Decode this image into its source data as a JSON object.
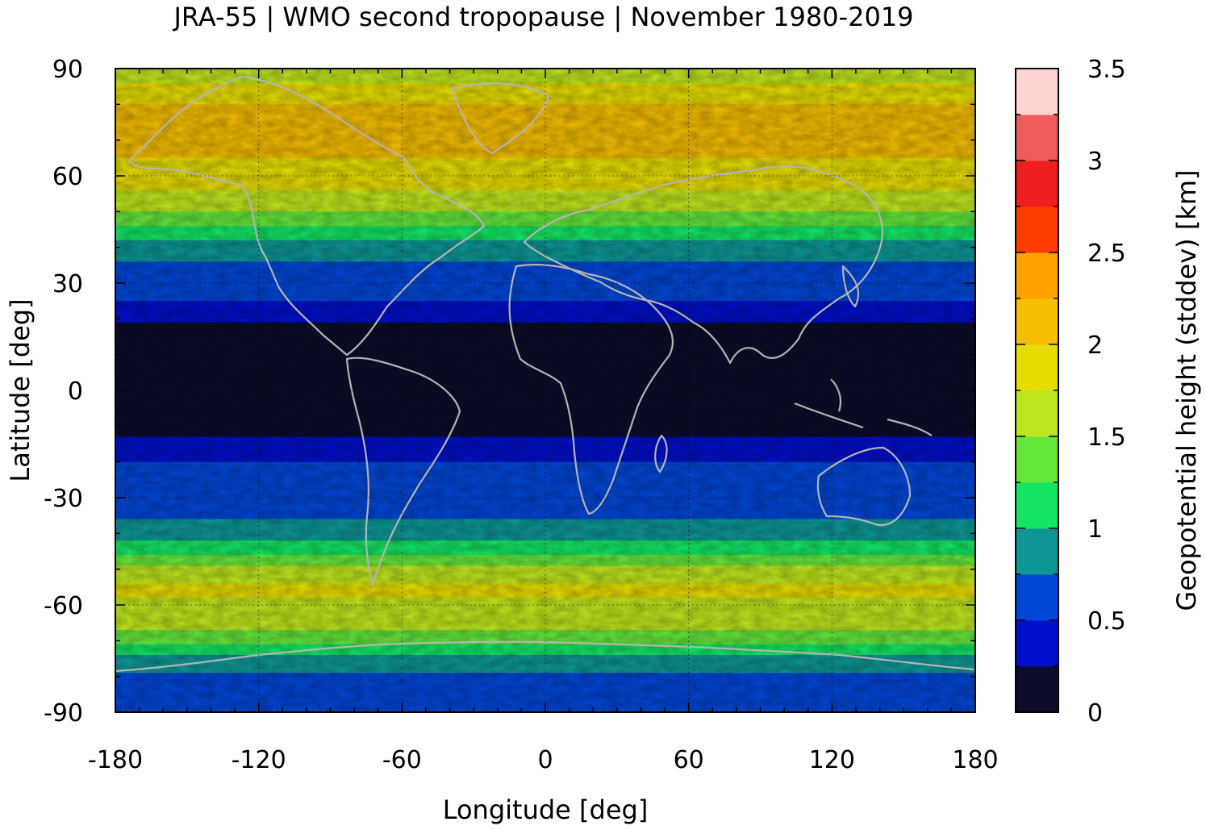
{
  "chart_data": {
    "type": "heatmap",
    "title": "JRA-55 | WMO second tropopause | November 1980-2019",
    "xlabel": "Longitude [deg]",
    "ylabel": "Latitude [deg]",
    "colorbar_label": "Geopotential height (stddev) [km]",
    "xlim": [
      -180,
      180
    ],
    "ylim": [
      -90,
      90
    ],
    "x_ticks": [
      -180,
      -120,
      -60,
      0,
      60,
      120,
      180
    ],
    "y_ticks": [
      90,
      60,
      30,
      0,
      -30,
      -60,
      -90
    ],
    "x_tick_labels": [
      "-180",
      "-120",
      "-60",
      "0",
      "60",
      "120",
      "180"
    ],
    "y_tick_labels": [
      "90",
      "60",
      "30",
      "0",
      "-30",
      "-60",
      "-90"
    ],
    "grid": true,
    "colorbar": {
      "range": [
        0,
        3.5
      ],
      "levels": [
        0,
        0.25,
        0.5,
        0.75,
        1.0,
        1.25,
        1.5,
        1.75,
        2.0,
        2.25,
        2.5,
        2.75,
        3.0,
        3.25,
        3.5
      ],
      "tick_values": [
        0,
        0.5,
        1,
        1.5,
        2,
        2.5,
        3,
        3.5
      ],
      "tick_labels": [
        "0",
        "0.5",
        "1",
        "1.5",
        "2",
        "2.5",
        "3",
        "3.5"
      ],
      "colors": [
        "#0d0d2b",
        "#0010c8",
        "#0047d6",
        "#0e9696",
        "#14e664",
        "#64e63c",
        "#bee61e",
        "#e6dc00",
        "#f5be00",
        "#ffa000",
        "#ff3c00",
        "#f01e1e",
        "#f05a5a",
        "#ffd2d2"
      ]
    },
    "zonal_profile": {
      "lat": [
        -90,
        -85,
        -80,
        -75,
        -70,
        -65,
        -60,
        -55,
        -50,
        -45,
        -40,
        -35,
        -30,
        -25,
        -20,
        -15,
        -10,
        -5,
        0,
        5,
        10,
        15,
        20,
        25,
        30,
        35,
        40,
        45,
        50,
        55,
        60,
        65,
        70,
        75,
        80,
        85,
        90
      ],
      "stddev_km": [
        0.6,
        0.6,
        0.7,
        0.9,
        1.3,
        1.6,
        1.7,
        1.8,
        1.6,
        1.1,
        0.9,
        0.7,
        0.6,
        0.6,
        0.5,
        0.3,
        0.15,
        0.15,
        0.2,
        0.15,
        0.1,
        0.1,
        0.3,
        0.5,
        0.6,
        0.7,
        0.9,
        1.2,
        1.5,
        1.7,
        1.9,
        2.0,
        2.1,
        2.1,
        2.0,
        1.8,
        1.6
      ]
    },
    "grid_line_color": "#000000",
    "coastline_color": "#b4b4b4"
  }
}
